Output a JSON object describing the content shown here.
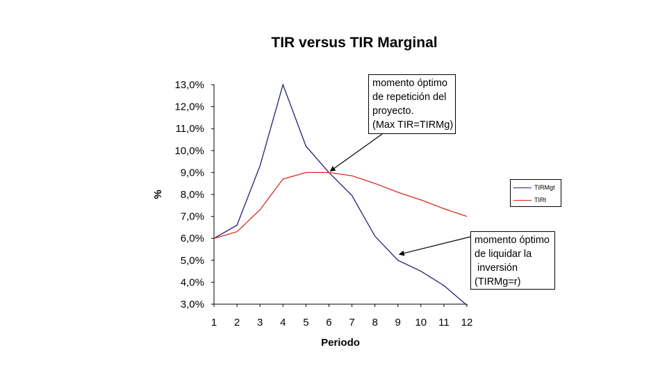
{
  "chart_data": {
    "type": "line",
    "title": "TIR versus TIR Marginal",
    "xlabel": "Periodo",
    "ylabel": "%",
    "x": [
      1,
      2,
      3,
      4,
      5,
      6,
      7,
      8,
      9,
      10,
      11,
      12
    ],
    "ylim": [
      3.0,
      13.0
    ],
    "yticks": [
      "3,0%",
      "4,0%",
      "5,0%",
      "6,0%",
      "7,0%",
      "8,0%",
      "9,0%",
      "10,0%",
      "11,0%",
      "12,0%",
      "13,0%"
    ],
    "grid": false,
    "legend_position": "right",
    "series": [
      {
        "name": "TIRMgt",
        "color": "#1f1f7a",
        "values": [
          6.0,
          6.6,
          9.3,
          13.0,
          10.2,
          9.0,
          7.95,
          6.1,
          5.0,
          4.5,
          3.85,
          2.95
        ]
      },
      {
        "name": "TIRt",
        "color": "#e0241b",
        "values": [
          6.0,
          6.3,
          7.3,
          8.7,
          9.0,
          9.0,
          8.85,
          8.5,
          8.1,
          7.75,
          7.35,
          7.0
        ]
      }
    ],
    "annotations": [
      {
        "text": "momento óptimo\nde repetición del\nproyecto.\n(Max TIR=TIRMg)",
        "points_to": [
          6,
          9.0
        ]
      },
      {
        "text": "momento óptimo\nde liquidar la\n inversión\n(TIRMg=r)",
        "points_to": [
          9,
          5.3
        ]
      }
    ]
  }
}
